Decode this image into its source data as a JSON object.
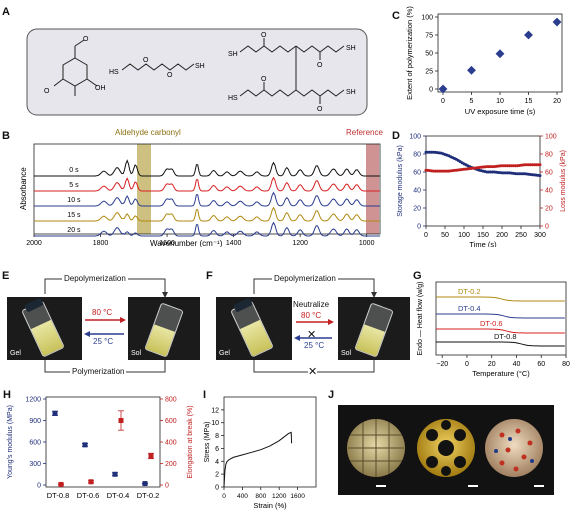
{
  "panel_labels": {
    "A": "A",
    "B": "B",
    "C": "C",
    "D": "D",
    "E": "E",
    "F": "F",
    "G": "G",
    "H": "H",
    "I": "I",
    "J": "J"
  },
  "panel_a": {
    "molecules": [
      "vanillin",
      "2,2'-(ethylenedioxy)diethanethiol",
      "pentaerythritol tetrakis(3-mercaptopropionate)"
    ],
    "box_color": "#e8e8ee"
  },
  "panel_b": {
    "ylabel": "Absorbance",
    "xlabel": "Wavenumber (cm⁻¹)",
    "band1": "Aldehyde carbonyl",
    "band2": "Reference",
    "traces": [
      "0 s",
      "5 s",
      "10 s",
      "15 s",
      "20 s"
    ],
    "trace_colors": [
      "#111111",
      "#d62020",
      "#2b3d8f",
      "#b08a10",
      "#2b3d8f"
    ],
    "xticks": [
      "2000",
      "1800",
      "1600",
      "1400",
      "1200",
      "1000"
    ]
  },
  "panel_c": {
    "chart_data": {
      "type": "scatter",
      "xlabel": "UV exposure time (s)",
      "ylabel": "Extent of polymerization (%)",
      "x": [
        0,
        5,
        10,
        15,
        20
      ],
      "y": [
        0,
        26,
        49,
        75,
        93
      ],
      "xlim": [
        0,
        20
      ],
      "ylim": [
        0,
        100
      ],
      "xticks": [
        "0",
        "5",
        "10",
        "15",
        "20"
      ],
      "yticks": [
        "0",
        "25",
        "50",
        "75",
        "100"
      ]
    }
  },
  "panel_d": {
    "chart_data": {
      "type": "scatter",
      "xlabel": "Time (s)",
      "ylabel_left": "Storage modulus (kPa)",
      "ylabel_right": "Loss modulus (kPa)",
      "xlim": [
        0,
        300
      ],
      "ylim_left": [
        0,
        100
      ],
      "ylim_right": [
        0,
        100
      ],
      "xticks": [
        "0",
        "50",
        "100",
        "150",
        "200",
        "250",
        "300"
      ],
      "yticks_left": [
        "0",
        "20",
        "40",
        "60",
        "80",
        "100"
      ],
      "yticks_right": [
        "0",
        "20",
        "40",
        "60",
        "80",
        "100"
      ],
      "series": [
        {
          "axis": "left",
          "color": "#1f2f7a",
          "x": [
            0,
            20,
            40,
            60,
            80,
            100,
            120,
            140,
            160,
            180,
            200,
            220,
            240,
            260,
            280,
            300
          ],
          "y": [
            82,
            82,
            81,
            78,
            74,
            69,
            65,
            62,
            60,
            60,
            59,
            59,
            58,
            58,
            57,
            56
          ]
        },
        {
          "axis": "right",
          "color": "#c02020",
          "x": [
            0,
            20,
            40,
            60,
            80,
            100,
            120,
            140,
            160,
            180,
            200,
            220,
            240,
            260,
            280,
            300
          ],
          "y": [
            62,
            61,
            61,
            61,
            62,
            63,
            64,
            65,
            66,
            66,
            67,
            67,
            67,
            68,
            68,
            68
          ]
        }
      ]
    }
  },
  "panel_e": {
    "top": "Depolymerization",
    "bottom": "Polymerization",
    "temp_hot": "80 °C",
    "temp_cold": "25 °C",
    "left_state": "Gel",
    "right_state": "Sol"
  },
  "panel_f": {
    "top": "Depolymerization",
    "neutralize": "Neutralize",
    "temp_hot": "80 °C",
    "temp_cold": "25 °C",
    "left_state": "Gel",
    "right_state": "Sol",
    "cross": "✕"
  },
  "panel_g": {
    "ylabel": "Endo — Heat flow (w/g)",
    "xlabel": "Temperature (°C)",
    "xticks": [
      "−20",
      "0",
      "20",
      "40",
      "60",
      "80"
    ],
    "curves": [
      "DT-0.2",
      "DT-0.4",
      "DT-0.6",
      "DT-0.8"
    ],
    "curve_colors": [
      "#b08a10",
      "#2b3d8f",
      "#d62020",
      "#111111"
    ]
  },
  "panel_h": {
    "chart_data": {
      "type": "scatter",
      "categories": [
        "DT-0.8",
        "DT-0.6",
        "DT-0.4",
        "DT-0.2"
      ],
      "ylabel_left": "Young's modulus (MPa)",
      "ylabel_right": "Elongation at break (%)",
      "ylim_left": [
        0,
        1200
      ],
      "ylim_right": [
        0,
        800
      ],
      "yticks_left": [
        "0",
        "300",
        "600",
        "900",
        "1200"
      ],
      "yticks_right": [
        "0",
        "200",
        "400",
        "600",
        "800"
      ],
      "series": [
        {
          "name": "Young's modulus",
          "axis": "left",
          "color": "#1f2f7a",
          "values": [
            1000,
            560,
            150,
            20
          ],
          "err": [
            30,
            20,
            20,
            5
          ]
        },
        {
          "name": "Elongation at break",
          "axis": "right",
          "color": "#c02020",
          "values": [
            5,
            30,
            600,
            270
          ],
          "err": [
            5,
            10,
            90,
            25
          ]
        }
      ]
    }
  },
  "panel_i": {
    "chart_data": {
      "type": "line",
      "xlabel": "Strain (%)",
      "ylabel": "Stress (MPa)",
      "xlim": [
        0,
        2000
      ],
      "ylim": [
        0,
        14
      ],
      "xticks": [
        "0",
        "400",
        "800",
        "1200",
        "1600"
      ],
      "yticks": [
        "0",
        "2",
        "4",
        "6",
        "8",
        "10",
        "12"
      ],
      "x": [
        0,
        20,
        40,
        60,
        100,
        200,
        400,
        600,
        800,
        1000,
        1200,
        1400,
        1460,
        1470
      ],
      "y": [
        0,
        2.5,
        3.5,
        3.9,
        4.2,
        4.6,
        5.0,
        5.4,
        5.8,
        6.4,
        7.2,
        8.3,
        8.5,
        6.8
      ]
    }
  },
  "panel_j": {
    "objects": [
      "spherical lattice",
      "icosahedral cage",
      "decorated sphere"
    ]
  }
}
